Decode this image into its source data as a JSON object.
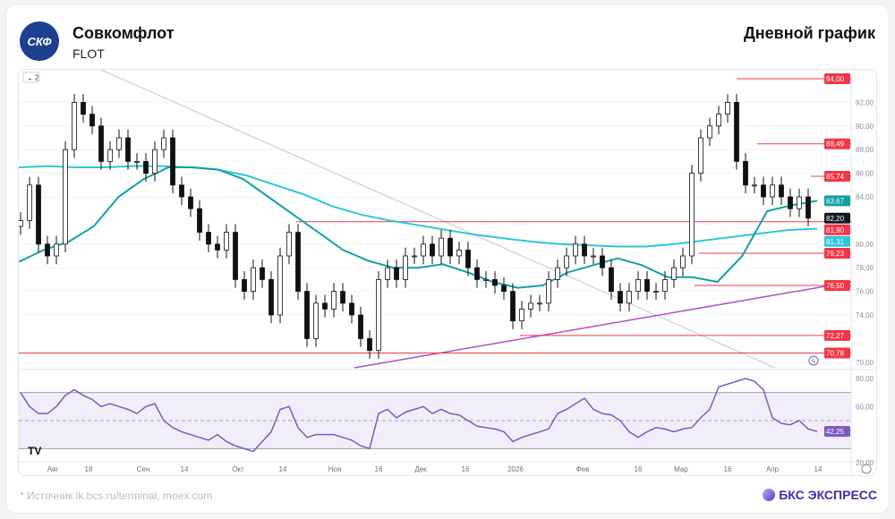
{
  "header": {
    "company": "Совкомфлот",
    "ticker": "FLOT",
    "logo_text": "СКФ",
    "chart_title": "Дневной график"
  },
  "footer": {
    "source": "* Источник lk.bcs.ru/terminal, moex.com",
    "brand": "БКС ЭКСПРЕСС"
  },
  "indicator_badge": "2",
  "colors": {
    "ma_long": "#2ec7d6",
    "ma_short": "#12a0a8",
    "level": "#f23645",
    "rsi": "#7e57c2",
    "trend": "#b04fc9"
  },
  "chart_data": {
    "type": "candlestick",
    "title": "Дневной график",
    "ylim": [
      70,
      94
    ],
    "y_ticks": [
      "92,00",
      "90,00",
      "88,00",
      "86,00",
      "84,00",
      "80,00",
      "78,00",
      "76,00",
      "74,00",
      "70,00"
    ],
    "y_tick_values": [
      92,
      90,
      88,
      86,
      84,
      80,
      78,
      76,
      74,
      70
    ],
    "x_ticks": [
      "Авг",
      "18",
      "Сен",
      "14",
      "Окт",
      "14",
      "Ноя",
      "16",
      "Дек",
      "16",
      "2026",
      "Фев",
      "16",
      "Мар",
      "16",
      "Апр",
      "14"
    ],
    "closes": [
      82,
      85,
      80,
      79,
      80,
      88,
      92,
      91,
      90,
      87,
      88,
      89,
      87,
      87,
      86,
      88,
      89,
      85,
      84,
      83,
      81,
      80,
      79.5,
      81,
      77,
      76,
      78,
      77,
      74,
      79,
      81,
      76,
      72,
      75,
      74.5,
      76,
      75,
      74,
      72,
      71,
      77,
      78,
      77,
      79,
      79,
      80,
      79,
      80.5,
      79,
      79.5,
      78,
      77,
      77,
      76.5,
      76,
      73.5,
      74.5,
      75,
      75,
      77,
      78,
      79,
      80,
      79,
      79,
      78,
      76,
      75,
      76,
      77,
      76,
      76,
      77,
      78,
      79,
      86,
      89,
      90,
      91,
      92,
      87,
      85,
      85,
      84,
      85,
      84,
      83,
      84,
      82.2
    ],
    "ma_long": [
      86.5,
      86.6,
      86.5,
      86.5,
      86.6,
      86.6,
      86.5,
      86.3,
      85.8,
      85.0,
      84.2,
      83.2,
      82.5,
      82.0,
      81.6,
      81.2,
      80.8,
      80.5,
      80.2,
      80.0,
      79.9,
      79.8,
      79.8,
      80.0,
      80.3,
      80.6,
      80.9,
      81.2,
      81.3
    ],
    "ma_short": [
      78.5,
      79.5,
      80.2,
      81.5,
      84,
      85.5,
      86.5,
      86.5,
      86.3,
      85.5,
      84,
      82.5,
      81,
      79.5,
      78.6,
      78,
      78,
      78.3,
      77.6,
      76.8,
      76.3,
      76.5,
      77.6,
      78.2,
      78.8,
      78.2,
      77.2,
      77.2,
      76.8,
      79,
      82.8,
      83.3,
      83.67
    ],
    "levels": [
      {
        "label": "94,00",
        "value": 94
      },
      {
        "label": "88,49",
        "value": 88.49
      },
      {
        "label": "85,74",
        "value": 85.74
      },
      {
        "label": "81,90",
        "value": 81.9
      },
      {
        "label": "79,23",
        "value": 79.23
      },
      {
        "label": "76,50",
        "value": 76.5
      },
      {
        "label": "72,27",
        "value": 72.27
      },
      {
        "label": "70,78",
        "value": 70.78
      }
    ],
    "price_tags": [
      {
        "label": "83,67",
        "value": 83.67,
        "color": "#12a0a8"
      },
      {
        "label": "82,20",
        "value": 82.2,
        "color": "#131722"
      },
      {
        "label": "81,31",
        "value": 81.31,
        "color": "#2ec7d6"
      }
    ],
    "rsi": {
      "ylim": [
        20,
        80
      ],
      "y_ticks": [
        "80,00",
        "60,00",
        "20,00"
      ],
      "y_tick_values": [
        80,
        60,
        20
      ],
      "bands": [
        30,
        70
      ],
      "last_label": "42,25",
      "last": 42.25,
      "values": [
        70,
        60,
        55,
        55,
        60,
        68,
        72,
        68,
        65,
        60,
        62,
        60,
        58,
        55,
        60,
        62,
        50,
        45,
        42,
        40,
        38,
        36,
        40,
        35,
        32,
        30,
        28,
        35,
        42,
        58,
        60,
        45,
        38,
        40,
        40,
        40,
        38,
        36,
        32,
        30,
        55,
        58,
        52,
        56,
        58,
        60,
        55,
        58,
        55,
        54,
        50,
        46,
        45,
        44,
        42,
        35,
        38,
        40,
        42,
        44,
        55,
        58,
        62,
        66,
        58,
        55,
        54,
        50,
        42,
        38,
        42,
        45,
        44,
        42,
        44,
        45,
        52,
        58,
        74,
        76,
        78,
        80,
        78,
        72,
        52,
        48,
        47,
        50,
        44,
        42.25
      ]
    }
  }
}
